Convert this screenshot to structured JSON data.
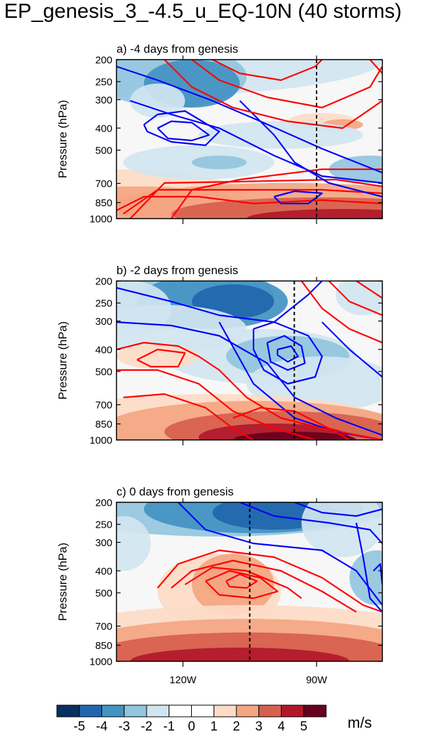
{
  "title": "EP_genesis_3_-4.5_u_EQ-10N (40 storms)",
  "colorbar": {
    "unit": "m/s",
    "labels": [
      "-5",
      "-4",
      "-3",
      "-2",
      "-1",
      "0",
      "1",
      "2",
      "3",
      "4",
      "5"
    ],
    "colors": [
      "#053061",
      "#2166ac",
      "#4393c3",
      "#92c5de",
      "#d1e5f0",
      "#ffffff",
      "#ffffff",
      "#fddbc7",
      "#f4a582",
      "#d6604d",
      "#b2182b",
      "#67001f"
    ]
  },
  "chart_data": [
    {
      "type": "heatmap",
      "title": "a) -4 days from genesis",
      "ylabel": "Pressure (hPa)",
      "y_ticks": [
        "200",
        "250",
        "300",
        "400",
        "500",
        "700",
        "850",
        "1000"
      ],
      "x_ticks": [],
      "marker_longitude": "90W",
      "contour_colors": {
        "positive": "#ff0000",
        "negative": "#0000ff"
      }
    },
    {
      "type": "heatmap",
      "title": "b) -2 days from genesis",
      "ylabel": "Pressure (hPa)",
      "y_ticks": [
        "200",
        "250",
        "300",
        "400",
        "500",
        "700",
        "850",
        "1000"
      ],
      "x_ticks": [],
      "marker_longitude": "95W",
      "contour_colors": {
        "positive": "#ff0000",
        "negative": "#0000ff"
      }
    },
    {
      "type": "heatmap",
      "title": "c) 0 days from genesis",
      "ylabel": "Pressure (hPa)",
      "y_ticks": [
        "200",
        "250",
        "300",
        "400",
        "500",
        "700",
        "850",
        "1000"
      ],
      "x_ticks": [
        "120W",
        "90W"
      ],
      "marker_longitude": "105W",
      "contour_colors": {
        "positive": "#ff0000",
        "negative": "#0000ff"
      }
    }
  ]
}
